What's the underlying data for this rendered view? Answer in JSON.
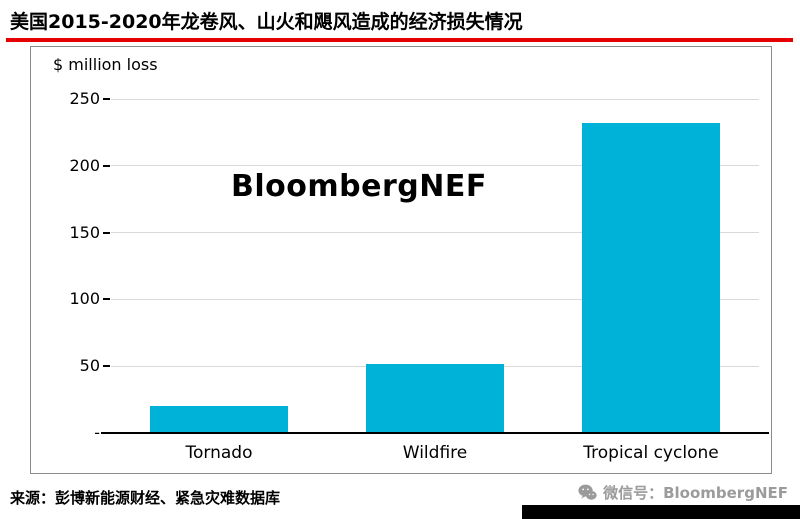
{
  "header": {
    "title": "美国2015-2020年龙卷风、山火和飓风造成的经济损失情况"
  },
  "chart_data": {
    "type": "bar",
    "title": "",
    "ylabel": "$ million loss",
    "xlabel": "",
    "categories": [
      "Tornado",
      "Wildfire",
      "Tropical cyclone"
    ],
    "values": [
      20,
      52,
      232
    ],
    "ylim": [
      0,
      250
    ],
    "yticks": [
      {
        "value": 250,
        "label": "250"
      },
      {
        "value": 200,
        "label": "200"
      },
      {
        "value": 150,
        "label": "150"
      },
      {
        "value": 100,
        "label": "100"
      },
      {
        "value": 50,
        "label": "50"
      },
      {
        "value": 0,
        "label": "-"
      }
    ],
    "grid": true,
    "legend": "none",
    "watermark": "BloombergNEF"
  },
  "footer": {
    "source": "来源：彭博新能源财经、紧急灾难数据库",
    "wechat_label": "微信号：BloombergNEF"
  },
  "colors": {
    "title_rule": "#e60000",
    "bar": "#00b1d8",
    "gridline": "#d9d9d9",
    "wechat_gray": "#9b9b9b"
  }
}
